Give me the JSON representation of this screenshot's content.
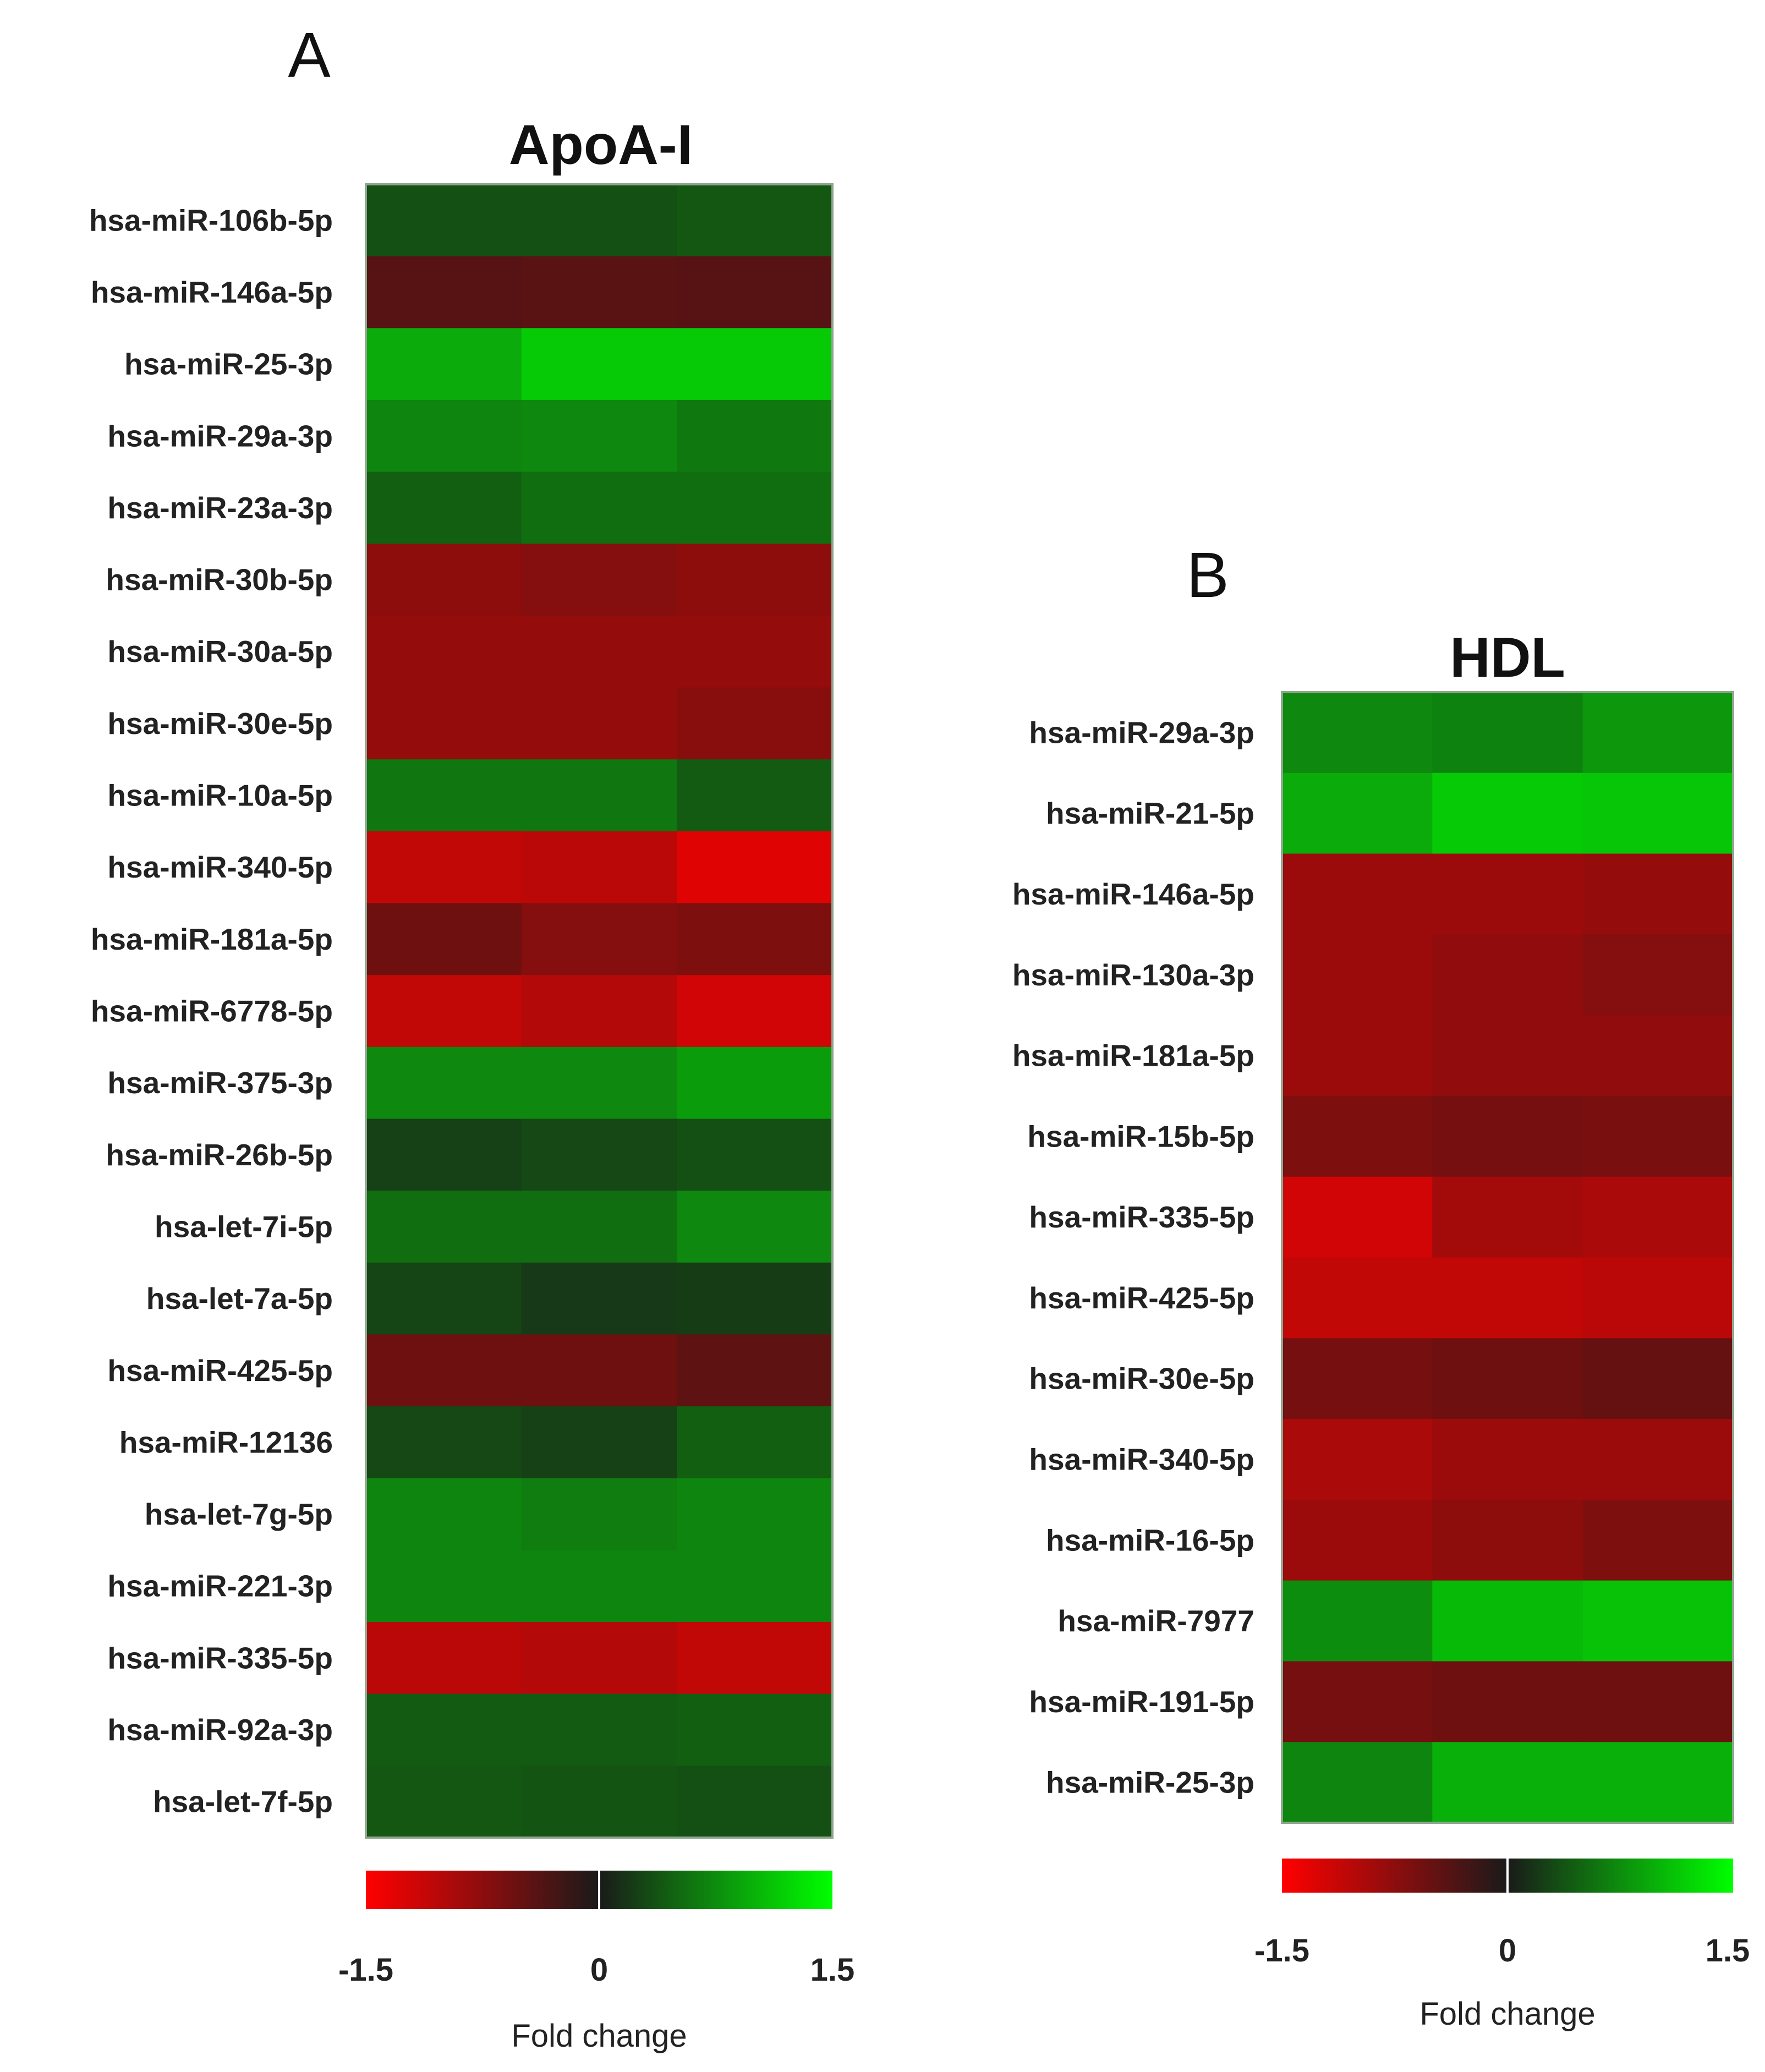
{
  "chart_data": [
    {
      "type": "heatmap",
      "panel": "A",
      "title": "ApoA-I",
      "rows": [
        "hsa-miR-106b-5p",
        "hsa-miR-146a-5p",
        "hsa-miR-25-3p",
        "hsa-miR-29a-3p",
        "hsa-miR-23a-3p",
        "hsa-miR-30b-5p",
        "hsa-miR-30a-5p",
        "hsa-miR-30e-5p",
        "hsa-miR-10a-5p",
        "hsa-miR-340-5p",
        "hsa-miR-181a-5p",
        "hsa-miR-6778-5p",
        "hsa-miR-375-3p",
        "hsa-miR-26b-5p",
        "hsa-let-7i-5p",
        "hsa-let-7a-5p",
        "hsa-miR-425-5p",
        "hsa-miR-12136",
        "hsa-let-7g-5p",
        "hsa-miR-221-3p",
        "hsa-miR-335-5p",
        "hsa-miR-92a-3p",
        "hsa-let-7f-5p"
      ],
      "columns": 3,
      "values": [
        [
          0.35,
          0.35,
          0.4
        ],
        [
          -0.4,
          -0.42,
          -0.4
        ],
        [
          0.95,
          1.15,
          1.15
        ],
        [
          0.7,
          0.72,
          0.62
        ],
        [
          0.45,
          0.55,
          0.55
        ],
        [
          -0.75,
          -0.7,
          -0.75
        ],
        [
          -0.8,
          -0.8,
          -0.8
        ],
        [
          -0.8,
          -0.8,
          -0.72
        ],
        [
          0.6,
          0.6,
          0.42
        ],
        [
          -1.1,
          -1.05,
          -1.3
        ],
        [
          -0.55,
          -0.7,
          -0.65
        ],
        [
          -1.1,
          -1.0,
          -1.2
        ],
        [
          0.72,
          0.72,
          0.85
        ],
        [
          0.25,
          0.3,
          0.35
        ],
        [
          0.55,
          0.55,
          0.72
        ],
        [
          0.28,
          0.2,
          0.22
        ],
        [
          -0.55,
          -0.55,
          -0.45
        ],
        [
          0.3,
          0.25,
          0.45
        ],
        [
          0.7,
          0.65,
          0.7
        ],
        [
          0.7,
          0.7,
          0.7
        ],
        [
          -1.05,
          -1.0,
          -1.1
        ],
        [
          0.42,
          0.42,
          0.45
        ],
        [
          0.4,
          0.38,
          0.35
        ]
      ],
      "colorscale": {
        "min": -1.5,
        "max": 1.5,
        "low_color": "#ff0000",
        "mid_color": "#1a1a1a",
        "high_color": "#00ff00",
        "ticks": [
          "-1.5",
          "0",
          "1.5"
        ],
        "label": "Fold change"
      }
    },
    {
      "type": "heatmap",
      "panel": "B",
      "title": "HDL",
      "rows": [
        "hsa-miR-29a-3p",
        "hsa-miR-21-5p",
        "hsa-miR-146a-5p",
        "hsa-miR-130a-3p",
        "hsa-miR-181a-5p",
        "hsa-miR-15b-5p",
        "hsa-miR-335-5p",
        "hsa-miR-425-5p",
        "hsa-miR-30e-5p",
        "hsa-miR-340-5p",
        "hsa-miR-16-5p",
        "hsa-miR-7977",
        "hsa-miR-191-5p",
        "hsa-miR-25-3p"
      ],
      "columns": 3,
      "values": [
        [
          0.72,
          0.68,
          0.82
        ],
        [
          0.95,
          1.15,
          1.12
        ],
        [
          -0.85,
          -0.85,
          -0.8
        ],
        [
          -0.85,
          -0.78,
          -0.7
        ],
        [
          -0.85,
          -0.78,
          -0.78
        ],
        [
          -0.65,
          -0.6,
          -0.62
        ],
        [
          -1.2,
          -0.9,
          -0.95
        ],
        [
          -1.1,
          -1.1,
          -1.05
        ],
        [
          -0.6,
          -0.55,
          -0.5
        ],
        [
          -0.95,
          -0.85,
          -0.85
        ],
        [
          -0.85,
          -0.75,
          -0.65
        ],
        [
          0.75,
          1.05,
          1.1
        ],
        [
          -0.6,
          -0.55,
          -0.55
        ],
        [
          0.7,
          0.98,
          0.98
        ]
      ],
      "colorscale": {
        "min": -1.5,
        "max": 1.5,
        "low_color": "#ff0000",
        "mid_color": "#1a1a1a",
        "high_color": "#00ff00",
        "ticks": [
          "-1.5",
          "0",
          "1.5"
        ],
        "label": "Fold change"
      }
    }
  ]
}
